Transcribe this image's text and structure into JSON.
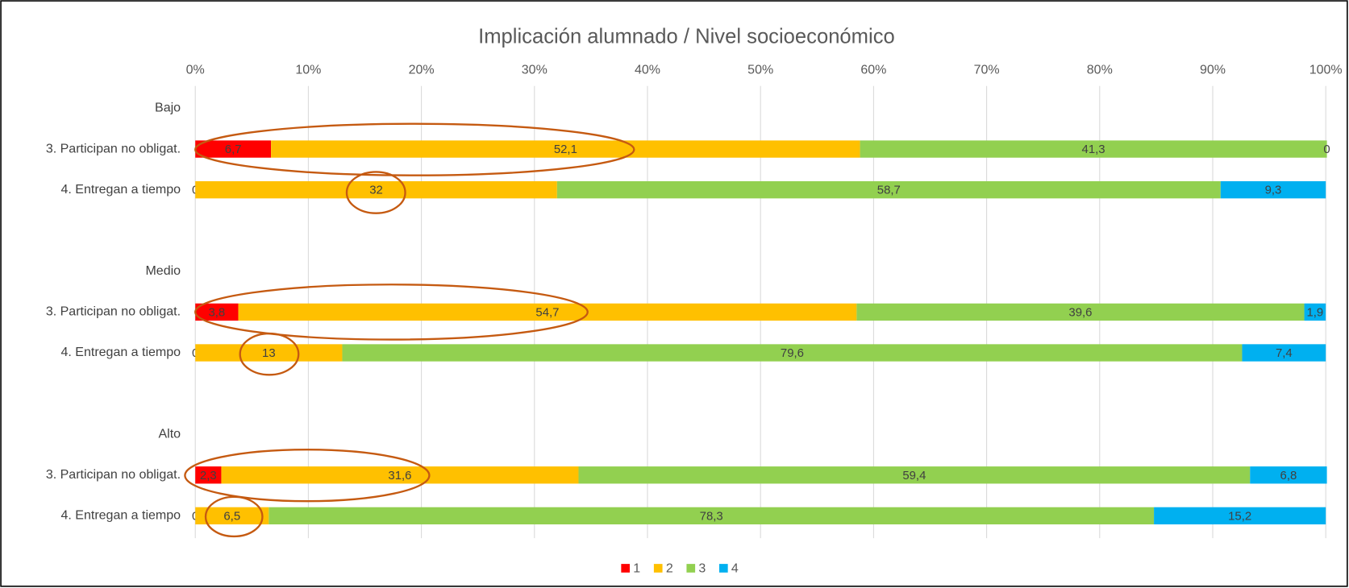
{
  "chart_data": {
    "type": "stacked_bar_horizontal",
    "title": "Implicación alumnado / Nivel socioeconómico",
    "categories": [
      "Bajo",
      "3. Participan no obligat.",
      "4. Entregan a tiempo",
      null,
      "Medio",
      "3. Participan no obligat.",
      "4. Entregan a tiempo",
      null,
      "Alto",
      "3. Participan no obligat.",
      "4. Entregan a tiempo"
    ],
    "series": [
      {
        "name": "1",
        "color": "#ff0000",
        "values": [
          null,
          6.7,
          0,
          null,
          null,
          3.8,
          0,
          null,
          null,
          2.3,
          0
        ],
        "value_labels": [
          null,
          "6,7",
          "0",
          null,
          null,
          "3,8",
          "0",
          null,
          null,
          "2,3",
          "0"
        ]
      },
      {
        "name": "2",
        "color": "#ffc000",
        "values": [
          null,
          52.1,
          32,
          null,
          null,
          54.7,
          13,
          null,
          null,
          31.6,
          6.5
        ],
        "value_labels": [
          null,
          "52,1",
          "32",
          null,
          null,
          "54,7",
          "13",
          null,
          null,
          "31,6",
          "6,5"
        ]
      },
      {
        "name": "3",
        "color": "#92d050",
        "values": [
          null,
          41.3,
          58.7,
          null,
          null,
          39.6,
          79.6,
          null,
          null,
          59.4,
          78.3
        ],
        "value_labels": [
          null,
          "41,3",
          "58,7",
          null,
          null,
          "39,6",
          "79,6",
          null,
          null,
          "59,4",
          "78,3"
        ]
      },
      {
        "name": "4",
        "color": "#00b0f0",
        "values": [
          null,
          0,
          9.3,
          null,
          null,
          1.9,
          7.4,
          null,
          null,
          6.8,
          15.2
        ],
        "value_labels": [
          null,
          "0",
          "9,3",
          null,
          null,
          "1,9",
          "7,4",
          null,
          null,
          "6,8",
          "15,2"
        ]
      }
    ],
    "xlim": [
      0,
      100
    ],
    "xticks": [
      {
        "value": 0,
        "label": "0%"
      },
      {
        "value": 10,
        "label": "10%"
      },
      {
        "value": 20,
        "label": "20%"
      },
      {
        "value": 30,
        "label": "30%"
      },
      {
        "value": 40,
        "label": "40%"
      },
      {
        "value": 50,
        "label": "50%"
      },
      {
        "value": 60,
        "label": "60%"
      },
      {
        "value": 70,
        "label": "70%"
      },
      {
        "value": 80,
        "label": "80%"
      },
      {
        "value": 90,
        "label": "90%"
      },
      {
        "value": 100,
        "label": "100%"
      }
    ],
    "grid": true,
    "legend": "bottom"
  }
}
